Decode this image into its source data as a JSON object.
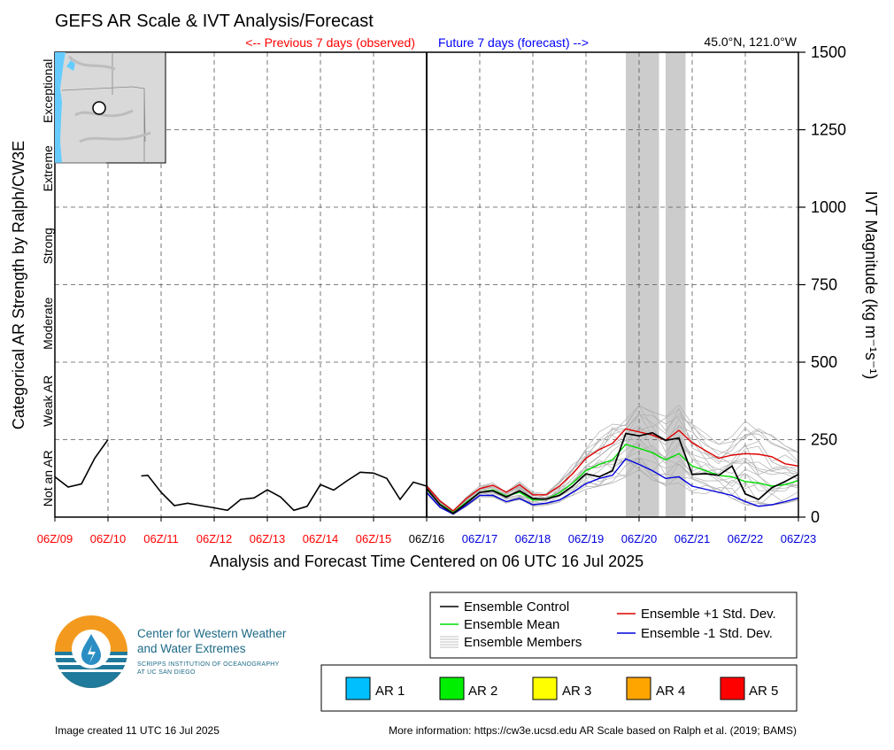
{
  "title": "GEFS AR Scale & IVT Analysis/Forecast",
  "location": "45.0°N, 121.0°W",
  "previous_label": "<-- Previous 7 days (observed)",
  "future_label": "Future 7 days (forecast) -->",
  "left_axis_label": "Categorical AR Strength by Ralph/CW3E",
  "right_axis_label": "IVT Magnitude (kg m⁻¹s⁻¹)",
  "x_axis_label": "Analysis and Forecast Time Centered on 06 UTC 16 Jul 2025",
  "image_created": "Image created 11 UTC 16 Jul 2025",
  "more_info": "More information: https://cw3e.ucsd.edu AR Scale based on Ralph et al. (2019; BAMS)",
  "logo": {
    "line1": "Center for Western Weather",
    "line2": "and Water Extremes",
    "line3": "SCRIPPS INSTITUTION OF OCEANOGRAPHY",
    "line4": "AT UC SAN DIEGO"
  },
  "categories": [
    "Not an AR",
    "Weak AR",
    "Moderate",
    "Strong",
    "Extreme",
    "Exceptional"
  ],
  "legend_lines": [
    {
      "label": "Ensemble Control",
      "color": "#000000"
    },
    {
      "label": "Ensemble Mean",
      "color": "#00dd00"
    },
    {
      "label": "Ensemble Members",
      "color": "#aaaaaa"
    },
    {
      "label": "Ensemble +1 Std. Dev.",
      "color": "#e00000"
    },
    {
      "label": "Ensemble -1 Std. Dev.",
      "color": "#0000dd"
    }
  ],
  "legend_ar": [
    {
      "label": "AR 1",
      "color": "#00bfff"
    },
    {
      "label": "AR 2",
      "color": "#00ee00"
    },
    {
      "label": "AR 3",
      "color": "#ffff00"
    },
    {
      "label": "AR 4",
      "color": "#ffa500"
    },
    {
      "label": "AR 5",
      "color": "#ff0000"
    }
  ],
  "chart_data": {
    "type": "line",
    "ylim": [
      0,
      1500
    ],
    "yticks": [
      0,
      250,
      500,
      750,
      1000,
      1250,
      1500
    ],
    "x_range_days": [
      9,
      23
    ],
    "now_day": 16,
    "xticks": [
      {
        "label": "06Z/09",
        "day": 9,
        "color": "#ff0000"
      },
      {
        "label": "06Z/10",
        "day": 10,
        "color": "#ff0000"
      },
      {
        "label": "06Z/11",
        "day": 11,
        "color": "#ff0000"
      },
      {
        "label": "06Z/12",
        "day": 12,
        "color": "#ff0000"
      },
      {
        "label": "06Z/13",
        "day": 13,
        "color": "#ff0000"
      },
      {
        "label": "06Z/14",
        "day": 14,
        "color": "#ff0000"
      },
      {
        "label": "06Z/15",
        "day": 15,
        "color": "#ff0000"
      },
      {
        "label": "06Z/16",
        "day": 16,
        "color": "#000000"
      },
      {
        "label": "06Z/17",
        "day": 17,
        "color": "#0000dd"
      },
      {
        "label": "06Z/18",
        "day": 18,
        "color": "#0000dd"
      },
      {
        "label": "06Z/19",
        "day": 19,
        "color": "#0000dd"
      },
      {
        "label": "06Z/20",
        "day": 20,
        "color": "#0000dd"
      },
      {
        "label": "06Z/21",
        "day": 21,
        "color": "#0000dd"
      },
      {
        "label": "06Z/22",
        "day": 22,
        "color": "#0000dd"
      },
      {
        "label": "06Z/23",
        "day": 23,
        "color": "#0000dd"
      }
    ],
    "category_bounds": [
      0,
      250,
      500,
      750,
      1000,
      1250,
      1500
    ],
    "shaded_periods": [
      [
        19.75,
        20.375
      ],
      [
        20.5,
        20.875
      ]
    ],
    "observed_segments": [
      {
        "x": [
          9.0,
          9.25,
          9.5,
          9.75,
          10.0
        ],
        "y": [
          130,
          97,
          107,
          190,
          250
        ]
      },
      {
        "x": [
          10.625,
          10.75,
          11.0,
          11.25,
          11.5,
          11.75,
          12.0,
          12.25,
          12.5,
          12.75,
          13.0,
          13.25,
          13.5,
          13.75,
          14.0,
          14.25,
          14.5,
          14.75,
          15.0,
          15.25,
          15.5,
          15.75,
          16.0
        ],
        "y": [
          133,
          135,
          80,
          37,
          45,
          37,
          30,
          22,
          57,
          62,
          88,
          65,
          22,
          35,
          105,
          87,
          117,
          145,
          142,
          125,
          57,
          113,
          100
        ]
      }
    ],
    "series": [
      {
        "name": "Ensemble Control",
        "x": [
          16.0,
          16.25,
          16.5,
          16.75,
          17.0,
          17.25,
          17.5,
          17.75,
          18.0,
          18.25,
          18.5,
          18.75,
          19.0,
          19.25,
          19.5,
          19.75,
          20.0,
          20.25,
          20.5,
          20.75,
          21.0,
          21.25,
          21.5,
          21.75,
          22.0,
          22.25,
          22.5,
          22.75,
          23.0
        ],
        "y": [
          93,
          40,
          12,
          45,
          80,
          85,
          65,
          85,
          60,
          58,
          70,
          100,
          140,
          130,
          150,
          270,
          262,
          272,
          248,
          255,
          138,
          140,
          135,
          165,
          75,
          57,
          95,
          115,
          138
        ]
      },
      {
        "name": "Ensemble Mean",
        "x": [
          16.0,
          16.25,
          16.5,
          16.75,
          17.0,
          17.25,
          17.5,
          17.75,
          18.0,
          18.25,
          18.5,
          18.75,
          19.0,
          19.25,
          19.5,
          19.75,
          20.0,
          20.25,
          20.5,
          20.75,
          21.0,
          21.25,
          21.5,
          21.75,
          22.0,
          22.25,
          22.5,
          22.75,
          23.0
        ],
        "y": [
          90,
          42,
          15,
          48,
          80,
          88,
          68,
          80,
          55,
          58,
          78,
          110,
          150,
          170,
          185,
          235,
          222,
          208,
          185,
          205,
          165,
          150,
          135,
          130,
          115,
          110,
          100,
          105,
          118
        ]
      },
      {
        "name": "Ensemble +1 Std. Dev.",
        "x": [
          16.0,
          16.25,
          16.5,
          16.75,
          17.0,
          17.25,
          17.5,
          17.75,
          18.0,
          18.25,
          18.5,
          18.75,
          19.0,
          19.25,
          19.5,
          19.75,
          20.0,
          20.25,
          20.5,
          20.75,
          21.0,
          21.25,
          21.5,
          21.75,
          22.0,
          22.25,
          22.5,
          22.75,
          23.0
        ],
        "y": [
          100,
          52,
          20,
          60,
          92,
          103,
          80,
          105,
          72,
          72,
          100,
          140,
          190,
          218,
          238,
          285,
          275,
          265,
          248,
          280,
          240,
          215,
          190,
          200,
          205,
          203,
          195,
          172,
          165
        ]
      },
      {
        "name": "Ensemble -1 Std. Dev.",
        "x": [
          16.0,
          16.25,
          16.5,
          16.75,
          17.0,
          17.25,
          17.5,
          17.75,
          18.0,
          18.25,
          18.5,
          18.75,
          19.0,
          19.25,
          19.5,
          19.75,
          20.0,
          20.25,
          20.5,
          20.75,
          21.0,
          21.25,
          21.5,
          21.75,
          22.0,
          22.25,
          22.5,
          22.75,
          23.0
        ],
        "y": [
          80,
          32,
          10,
          38,
          70,
          70,
          50,
          60,
          40,
          45,
          55,
          80,
          108,
          125,
          135,
          188,
          170,
          150,
          125,
          130,
          100,
          90,
          80,
          70,
          50,
          35,
          40,
          50,
          62
        ]
      }
    ],
    "members_envelope": {
      "x": [
        16.0,
        16.25,
        16.5,
        16.75,
        17.0,
        17.25,
        17.5,
        17.75,
        18.0,
        18.25,
        18.5,
        18.75,
        19.0,
        19.25,
        19.5,
        19.75,
        20.0,
        20.25,
        20.5,
        20.75,
        21.0,
        21.25,
        21.5,
        21.75,
        22.0,
        22.25,
        22.5,
        22.75,
        23.0
      ],
      "low": [
        75,
        30,
        8,
        35,
        65,
        65,
        45,
        55,
        35,
        38,
        48,
        70,
        90,
        100,
        110,
        130,
        140,
        120,
        100,
        110,
        80,
        75,
        70,
        60,
        40,
        35,
        38,
        45,
        55
      ],
      "high": [
        105,
        55,
        22,
        65,
        100,
        110,
        85,
        115,
        80,
        80,
        115,
        170,
        240,
        275,
        300,
        315,
        360,
        340,
        325,
        375,
        300,
        270,
        235,
        260,
        310,
        285,
        265,
        230,
        210
      ]
    }
  }
}
